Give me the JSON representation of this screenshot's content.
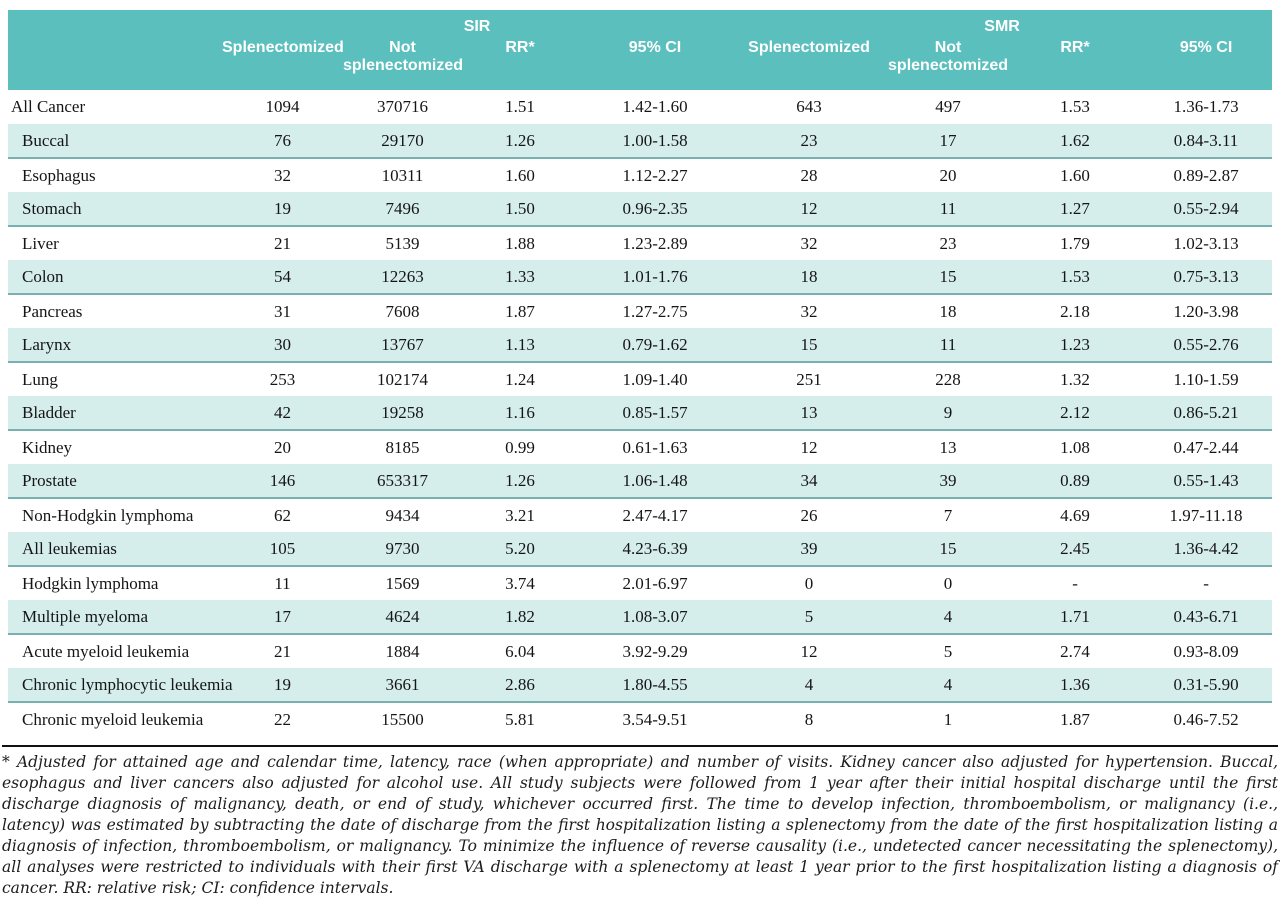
{
  "colors": {
    "header_bg": "#5bbfbe",
    "stripe_bg": "#d5edeb",
    "stripe_border": "#78b1b2"
  },
  "table": {
    "groups": [
      {
        "label": "SIR"
      },
      {
        "label": "SMR"
      }
    ],
    "columns": [
      "Splenectomized",
      "Not splenectomized",
      "RR*",
      "95% CI",
      "Splenectomized",
      "Not splenectomized",
      "RR*",
      "95% CI"
    ],
    "rows": [
      {
        "label": "All Cancer",
        "indent": false,
        "values": [
          "1094",
          "370716",
          "1.51",
          "1.42-1.60",
          "643",
          "497",
          "1.53",
          "1.36-1.73"
        ]
      },
      {
        "label": "Buccal",
        "indent": true,
        "values": [
          "76",
          "29170",
          "1.26",
          "1.00-1.58",
          "23",
          "17",
          "1.62",
          "0.84-3.11"
        ]
      },
      {
        "label": "Esophagus",
        "indent": true,
        "values": [
          "32",
          "10311",
          "1.60",
          "1.12-2.27",
          "28",
          "20",
          "1.60",
          "0.89-2.87"
        ]
      },
      {
        "label": "Stomach",
        "indent": true,
        "values": [
          "19",
          "7496",
          "1.50",
          "0.96-2.35",
          "12",
          "11",
          "1.27",
          "0.55-2.94"
        ]
      },
      {
        "label": "Liver",
        "indent": true,
        "values": [
          "21",
          "5139",
          "1.88",
          "1.23-2.89",
          "32",
          "23",
          "1.79",
          "1.02-3.13"
        ]
      },
      {
        "label": "Colon",
        "indent": true,
        "values": [
          "54",
          "12263",
          "1.33",
          "1.01-1.76",
          "18",
          "15",
          "1.53",
          "0.75-3.13"
        ]
      },
      {
        "label": "Pancreas",
        "indent": true,
        "values": [
          "31",
          "7608",
          "1.87",
          "1.27-2.75",
          "32",
          "18",
          "2.18",
          "1.20-3.98"
        ]
      },
      {
        "label": "Larynx",
        "indent": true,
        "values": [
          "30",
          "13767",
          "1.13",
          "0.79-1.62",
          "15",
          "11",
          "1.23",
          "0.55-2.76"
        ]
      },
      {
        "label": "Lung",
        "indent": true,
        "values": [
          "253",
          "102174",
          "1.24",
          "1.09-1.40",
          "251",
          "228",
          "1.32",
          "1.10-1.59"
        ]
      },
      {
        "label": "Bladder",
        "indent": true,
        "values": [
          "42",
          "19258",
          "1.16",
          "0.85-1.57",
          "13",
          "9",
          "2.12",
          "0.86-5.21"
        ]
      },
      {
        "label": "Kidney",
        "indent": true,
        "values": [
          "20",
          "8185",
          "0.99",
          "0.61-1.63",
          "12",
          "13",
          "1.08",
          "0.47-2.44"
        ]
      },
      {
        "label": "Prostate",
        "indent": true,
        "values": [
          "146",
          "653317",
          "1.26",
          "1.06-1.48",
          "34",
          "39",
          "0.89",
          "0.55-1.43"
        ]
      },
      {
        "label": "Non-Hodgkin lymphoma",
        "indent": true,
        "values": [
          "62",
          "9434",
          "3.21",
          "2.47-4.17",
          "26",
          "7",
          "4.69",
          "1.97-11.18"
        ]
      },
      {
        "label": "All leukemias",
        "indent": true,
        "values": [
          "105",
          "9730",
          "5.20",
          "4.23-6.39",
          "39",
          "15",
          "2.45",
          "1.36-4.42"
        ]
      },
      {
        "label": "Hodgkin lymphoma",
        "indent": true,
        "values": [
          "11",
          "1569",
          "3.74",
          "2.01-6.97",
          "0",
          "0",
          "-",
          "-"
        ]
      },
      {
        "label": "Multiple myeloma",
        "indent": true,
        "values": [
          "17",
          "4624",
          "1.82",
          "1.08-3.07",
          "5",
          "4",
          "1.71",
          "0.43-6.71"
        ]
      },
      {
        "label": "Acute myeloid leukemia",
        "indent": true,
        "values": [
          "21",
          "1884",
          "6.04",
          "3.92-9.29",
          "12",
          "5",
          "2.74",
          "0.93-8.09"
        ]
      },
      {
        "label": "Chronic lymphocytic leukemia",
        "indent": true,
        "values": [
          "19",
          "3661",
          "2.86",
          "1.80-4.55",
          "4",
          "4",
          "1.36",
          "0.31-5.90"
        ]
      },
      {
        "label": "Chronic myeloid leukemia",
        "indent": true,
        "values": [
          "22",
          "15500",
          "5.81",
          "3.54-9.51",
          "8",
          "1",
          "1.87",
          "0.46-7.52"
        ]
      }
    ]
  },
  "footnote": {
    "text": "* Adjusted for attained age and calendar time, latency, race (when appropriate) and number of visits.  Kidney cancer also adjusted for hypertension. Buccal, esophagus and liver cancers also adjusted for alcohol use. All study subjects were followed from 1 year after their initial hospital discharge until the first discharge diagnosis of malignancy, death, or end of study, whichever occurred first. The time to develop infection, thromboembolism, or malignancy (i.e., latency) was estimated by subtracting the date of discharge from the first hospitalization listing a splenectomy from the date of the first hospitalization listing a diagnosis of infection, thromboembolism, or malignancy. To minimize the influence of reverse causality (i.e., undetected cancer necessitating the splenectomy), all analyses were restricted to individuals with their first VA discharge with a splenectomy at least 1 year prior to the first hospitalization listing a diagnosis of cancer.  RR: relative risk; CI: confidence intervals."
  }
}
